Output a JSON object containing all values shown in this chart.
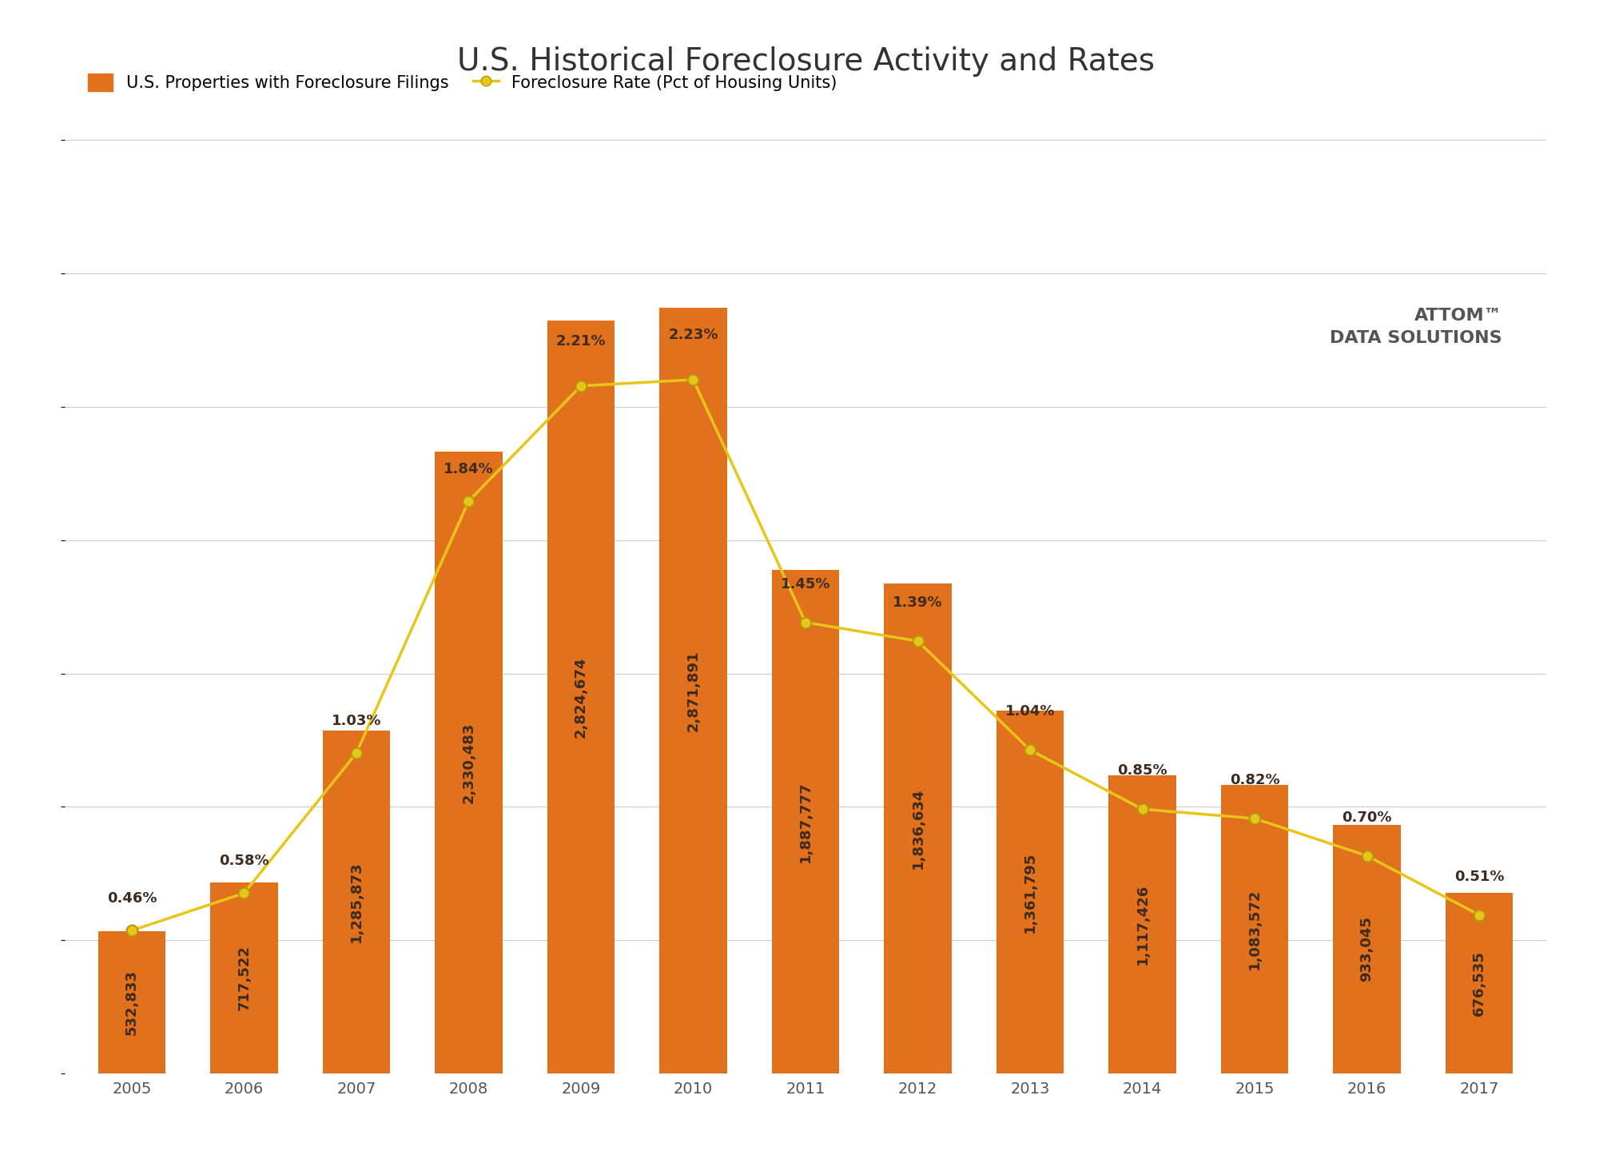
{
  "title": "U.S. Historical Foreclosure Activity and Rates",
  "years": [
    2005,
    2006,
    2007,
    2008,
    2009,
    2010,
    2011,
    2012,
    2013,
    2014,
    2015,
    2016,
    2017
  ],
  "filings": [
    532833,
    717522,
    1285873,
    2330483,
    2824674,
    2871891,
    1887777,
    1836634,
    1361795,
    1117426,
    1083572,
    933045,
    676535
  ],
  "rates": [
    0.46,
    0.58,
    1.03,
    1.84,
    2.21,
    2.23,
    1.45,
    1.39,
    1.04,
    0.85,
    0.82,
    0.7,
    0.51
  ],
  "bar_color": "#E2711D",
  "line_color": "#E8C619",
  "bar_label_color": "#3D2B1F",
  "rate_label_color": "#3D2B1F",
  "background_color": "#FFFFFF",
  "grid_color": "#CCCCCC",
  "legend_bar_label": "U.S. Properties with Foreclosure Filings",
  "legend_line_label": "Foreclosure Rate (Pct of Housing Units)",
  "title_fontsize": 28,
  "legend_fontsize": 15,
  "bar_label_fontsize": 13,
  "rate_label_fontsize": 13,
  "tick_fontsize": 14,
  "ylim_filings": [
    0,
    3500000
  ],
  "ylim_rate": [
    0,
    3.0
  ]
}
